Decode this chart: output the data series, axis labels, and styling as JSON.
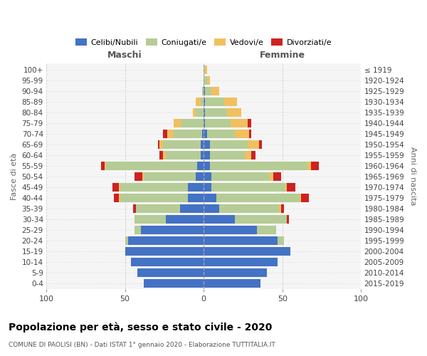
{
  "age_groups": [
    "100+",
    "95-99",
    "90-94",
    "85-89",
    "80-84",
    "75-79",
    "70-74",
    "65-69",
    "60-64",
    "55-59",
    "50-54",
    "45-49",
    "40-44",
    "35-39",
    "30-34",
    "25-29",
    "20-24",
    "15-19",
    "10-14",
    "5-9",
    "0-4"
  ],
  "birth_years": [
    "≤ 1919",
    "1920-1924",
    "1925-1929",
    "1930-1934",
    "1935-1939",
    "1940-1944",
    "1945-1949",
    "1950-1954",
    "1955-1959",
    "1960-1964",
    "1965-1969",
    "1970-1974",
    "1975-1979",
    "1980-1984",
    "1985-1989",
    "1990-1994",
    "1995-1999",
    "2000-2004",
    "2005-2009",
    "2010-2014",
    "2015-2019"
  ],
  "colors": {
    "celibi": "#4472C4",
    "coniugati": "#B5CC96",
    "vedovi": "#F0C060",
    "divorziati": "#CC2222"
  },
  "maschi_celibi": [
    0,
    0,
    0,
    0,
    0,
    0,
    1,
    2,
    2,
    4,
    5,
    10,
    10,
    15,
    24,
    40,
    48,
    50,
    46,
    42,
    38
  ],
  "maschi_coniugati": [
    0,
    0,
    1,
    2,
    5,
    14,
    18,
    24,
    22,
    58,
    33,
    43,
    43,
    28,
    20,
    4,
    2,
    0,
    0,
    0,
    0
  ],
  "maschi_vedovi": [
    0,
    0,
    0,
    3,
    2,
    5,
    4,
    2,
    2,
    1,
    1,
    1,
    1,
    0,
    0,
    0,
    0,
    0,
    0,
    0,
    0
  ],
  "maschi_divorziati": [
    0,
    0,
    0,
    0,
    0,
    0,
    3,
    1,
    2,
    2,
    5,
    4,
    3,
    2,
    0,
    0,
    0,
    0,
    0,
    0,
    0
  ],
  "femmine_celibi": [
    0,
    0,
    1,
    1,
    1,
    1,
    2,
    4,
    4,
    4,
    5,
    5,
    8,
    10,
    20,
    34,
    47,
    55,
    47,
    40,
    36
  ],
  "femmine_coniugati": [
    1,
    2,
    4,
    12,
    14,
    16,
    18,
    24,
    22,
    62,
    37,
    47,
    53,
    38,
    33,
    12,
    4,
    0,
    0,
    0,
    0
  ],
  "femmine_vedovi": [
    1,
    2,
    5,
    8,
    9,
    11,
    9,
    7,
    4,
    2,
    2,
    1,
    1,
    1,
    0,
    0,
    0,
    0,
    0,
    0,
    0
  ],
  "femmine_divorziati": [
    0,
    0,
    0,
    0,
    0,
    2,
    1,
    2,
    3,
    5,
    5,
    5,
    5,
    2,
    1,
    0,
    0,
    0,
    0,
    0,
    0
  ],
  "title": "Popolazione per età, sesso e stato civile - 2020",
  "subtitle": "COMUNE DI PAOLISI (BN) - Dati ISTAT 1° gennaio 2020 - Elaborazione TUTTITALIA.IT",
  "label_maschi": "Maschi",
  "label_femmine": "Femmine",
  "label_fasce": "Fasce di età",
  "label_anni": "Anni di nascita",
  "legend_labels": [
    "Celibi/Nubili",
    "Coniugati/e",
    "Vedovi/e",
    "Divorziati/e"
  ],
  "xlim": 100,
  "bg_color": "#F5F5F5",
  "grid_color": "#CCCCCC"
}
